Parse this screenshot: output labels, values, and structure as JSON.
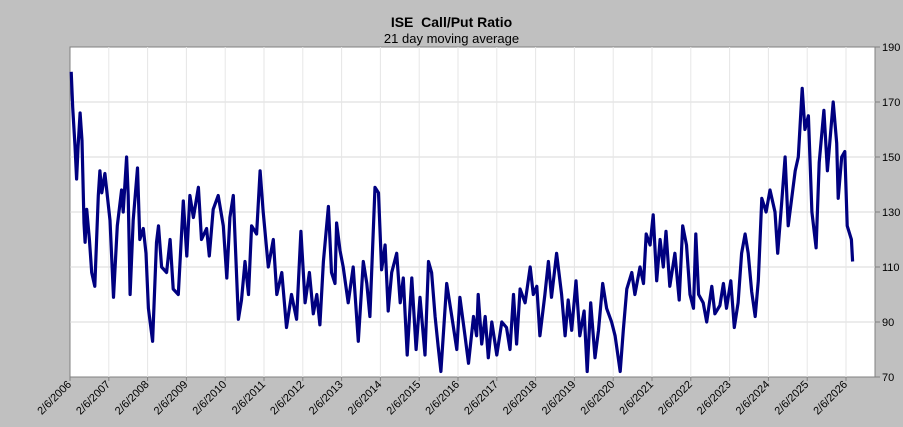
{
  "chart_data": {
    "type": "line",
    "title": "ISE  Call/Put Ratio",
    "subtitle": "21 day moving average",
    "xlabel": "",
    "ylabel": "",
    "ylim": [
      70,
      190
    ],
    "y_ticks": [
      "190",
      "170",
      "150",
      "130",
      "110",
      "90",
      "70"
    ],
    "y_axis_side": "right",
    "x_ticks": [
      "2/6/2006",
      "2/6/2007",
      "2/6/2008",
      "2/6/2009",
      "2/6/2010",
      "2/6/2011",
      "2/6/2012",
      "2/6/2013",
      "2/6/2014",
      "2/6/2015",
      "2/6/2016",
      "2/6/2017",
      "2/6/2018",
      "2/6/2019",
      "2/6/2020",
      "2/6/2021",
      "2/6/2022",
      "2/6/2023",
      "2/6/2024",
      "2/6/2025",
      "2/6/2026"
    ],
    "grid": true,
    "line_color": "#000080",
    "series": [
      {
        "name": "ISE Call/Put Ratio 21-day MA",
        "years_since_2006_02_06": [
          0.03,
          0.07,
          0.13,
          0.17,
          0.21,
          0.26,
          0.31,
          0.33,
          0.36,
          0.39,
          0.43,
          0.5,
          0.56,
          0.64,
          0.73,
          0.77,
          0.82,
          0.9,
          1.03,
          1.12,
          1.22,
          1.33,
          1.37,
          1.46,
          1.5,
          1.55,
          1.63,
          1.74,
          1.8,
          1.89,
          1.96,
          2.02,
          2.13,
          2.23,
          2.28,
          2.36,
          2.49,
          2.58,
          2.66,
          2.79,
          2.92,
          3.01,
          3.09,
          3.18,
          3.31,
          3.39,
          3.52,
          3.59,
          3.69,
          3.82,
          3.95,
          4.04,
          4.12,
          4.21,
          4.34,
          4.42,
          4.51,
          4.6,
          4.68,
          4.81,
          4.9,
          4.98,
          5.11,
          5.24,
          5.33,
          5.46,
          5.58,
          5.71,
          5.84,
          5.95,
          6.06,
          6.17,
          6.27,
          6.36,
          6.44,
          6.53,
          6.66,
          6.74,
          6.83,
          6.87,
          6.96,
          7.04,
          7.17,
          7.3,
          7.43,
          7.56,
          7.65,
          7.73,
          7.86,
          7.95,
          8.03,
          8.12,
          8.2,
          8.29,
          8.42,
          8.51,
          8.59,
          8.69,
          8.81,
          8.92,
          9.02,
          9.15,
          9.24,
          9.32,
          9.41,
          9.49,
          9.56,
          9.71,
          9.84,
          9.97,
          10.05,
          10.18,
          10.27,
          10.4,
          10.48,
          10.52,
          10.61,
          10.7,
          10.78,
          10.87,
          11.0,
          11.13,
          11.25,
          11.34,
          11.43,
          11.51,
          11.6,
          11.73,
          11.86,
          11.94,
          12.03,
          12.11,
          12.24,
          12.33,
          12.41,
          12.54,
          12.67,
          12.76,
          12.84,
          12.93,
          13.04,
          13.14,
          13.25,
          13.33,
          13.42,
          13.53,
          13.62,
          13.73,
          13.83,
          13.96,
          14.05,
          14.18,
          14.26,
          14.35,
          14.48,
          14.56,
          14.69,
          14.78,
          14.85,
          14.95,
          15.03,
          15.12,
          15.21,
          15.29,
          15.36,
          15.46,
          15.59,
          15.7,
          15.79,
          15.89,
          15.98,
          16.07,
          16.13,
          16.2,
          16.32,
          16.41,
          16.54,
          16.62,
          16.75,
          16.84,
          16.92,
          17.03,
          17.12,
          17.22,
          17.31,
          17.4,
          17.48,
          17.57,
          17.66,
          17.74,
          17.83,
          17.94,
          18.04,
          18.17,
          18.24,
          18.34,
          18.43,
          18.51,
          18.6,
          18.69,
          18.77,
          18.87,
          18.94,
          19.03,
          19.12,
          19.23,
          19.31,
          19.43,
          19.52,
          19.67,
          19.76,
          19.8,
          19.89,
          19.97,
          20.03,
          20.14,
          20.17
        ],
        "values": [
          181,
          168,
          154,
          142,
          154,
          166,
          156,
          144,
          126,
          119,
          131,
          120,
          108,
          103,
          136,
          145,
          137,
          144,
          127,
          99,
          125,
          138,
          130,
          150,
          136,
          100,
          127,
          146,
          120,
          124,
          115,
          95,
          83,
          119,
          125,
          110,
          108,
          120,
          102,
          100,
          134,
          114,
          136,
          128,
          139,
          120,
          124,
          114,
          131,
          136,
          125,
          106,
          128,
          136,
          91,
          98,
          112,
          100,
          125,
          122,
          145,
          130,
          110,
          120,
          100,
          108,
          88,
          100,
          91,
          123,
          97,
          108,
          93,
          100,
          89,
          112,
          132,
          108,
          104,
          126,
          116,
          110,
          97,
          110,
          83,
          112,
          104,
          92,
          139,
          137,
          109,
          118,
          94,
          108,
          115,
          97,
          106,
          78,
          106,
          80,
          99,
          78,
          112,
          108,
          92,
          81,
          72,
          104,
          92,
          80,
          99,
          85,
          75,
          92,
          85,
          100,
          82,
          92,
          77,
          90,
          78,
          90,
          88,
          80,
          100,
          82,
          102,
          97,
          110,
          100,
          103,
          85,
          100,
          112,
          99,
          115,
          100,
          85,
          98,
          87,
          105,
          85,
          94,
          72,
          97,
          77,
          87,
          104,
          95,
          90,
          85,
          72,
          87,
          102,
          108,
          100,
          110,
          104,
          122,
          118,
          129,
          105,
          120,
          110,
          123,
          103,
          115,
          98,
          125,
          118,
          100,
          95,
          122,
          100,
          97,
          90,
          103,
          93,
          96,
          104,
          95,
          105,
          88,
          97,
          115,
          122,
          115,
          101,
          92,
          105,
          135,
          130,
          138,
          130,
          115,
          133,
          150,
          125,
          135,
          145,
          150,
          175,
          160,
          165,
          130,
          117,
          148,
          167,
          145,
          170,
          155,
          135,
          150,
          152,
          125,
          120,
          112
        ]
      }
    ]
  }
}
